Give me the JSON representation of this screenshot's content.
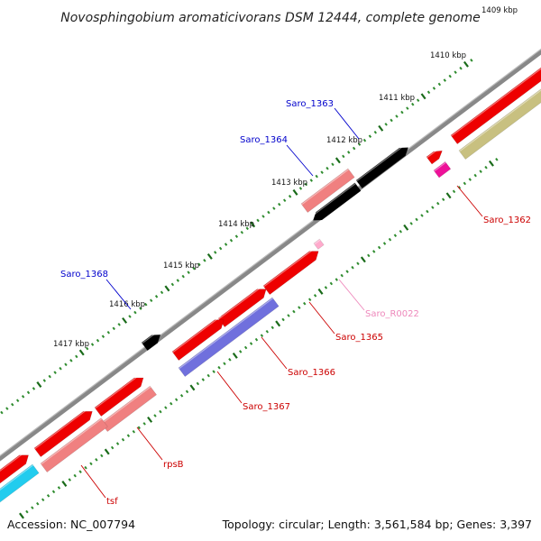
{
  "title": "Novosphingobium aromaticivorans DSM 12444, complete genome",
  "footer": {
    "accession": "Accession: NC_007794",
    "summary": "Topology: circular; Length: 3,561,584 bp; Genes: 3,397"
  },
  "scale_labels": [
    "1409 kbp",
    "1410 kbp",
    "1411 kbp",
    "1412 kbp",
    "1413 kbp",
    "1414 kbp",
    "1415 kbp",
    "1416 kbp",
    "1417 kbp"
  ],
  "gene_labels": [
    {
      "text": "Saro_1363",
      "color": "#0000cc"
    },
    {
      "text": "Saro_1364",
      "color": "#0000cc"
    },
    {
      "text": "Saro_1368",
      "color": "#0000cc"
    },
    {
      "text": "Saro_1362",
      "color": "#cc0000"
    },
    {
      "text": "Saro_R0022",
      "color": "#ee88bb"
    },
    {
      "text": "Saro_1365",
      "color": "#cc0000"
    },
    {
      "text": "Saro_1366",
      "color": "#cc0000"
    },
    {
      "text": "Saro_1367",
      "color": "#cc0000"
    },
    {
      "text": "rpsB",
      "color": "#cc0000"
    },
    {
      "text": "tsf",
      "color": "#cc0000"
    }
  ],
  "colors": {
    "backbone": "#888888",
    "tick_dark": "#1a6b1a",
    "tick_light": "#2e8b2e",
    "cds_forward": "#ee0000",
    "cds_reverse": "#0000dd",
    "cog_light_red": "#f08080",
    "cog_blue": "#0000dd",
    "cog_purple": "#7070dd",
    "cog_olive": "#c8c080",
    "cog_cyan": "#22ccee",
    "cog_magenta": "#ee1199",
    "rna": "#ffaacc"
  }
}
